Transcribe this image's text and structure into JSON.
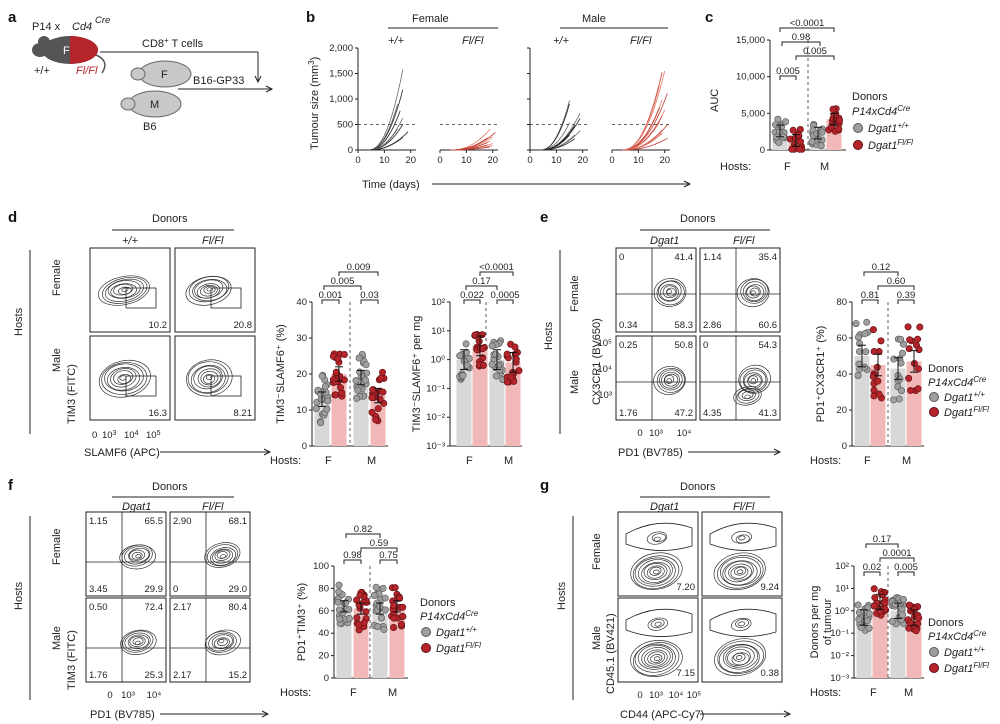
{
  "panels": {
    "a": {
      "letter": "a",
      "p14": "P14 x",
      "cd4": "Cd4",
      "cre": "Cre",
      "wt": "+/+",
      "flfl": "Fl/Fl",
      "mouseF": "F",
      "cd8": "CD8",
      "cd8b": "+",
      "cd8c": " T cells",
      "hostF": "F",
      "hostM": "M",
      "b16": "B16-GP33",
      "b6": "B6",
      "colors": {
        "red": "#b5242a",
        "gray": "#bdbdbd"
      }
    },
    "b": {
      "letter": "b",
      "female": "Female",
      "male": "Male",
      "wt": "+/+",
      "flfl": "Fl/Fl",
      "ylabel_pre": "Tumour size (mm",
      "ylabel_sup": "3",
      "ylabel_post": ")",
      "yticks": [
        "0",
        "500",
        "1,000",
        "1,500",
        "2,000"
      ],
      "xticks": [
        "0",
        "10",
        "20"
      ],
      "xlabel": "Time (days)"
    },
    "c": {
      "letter": "c",
      "ylabel": "AUC",
      "yticks": [
        "0",
        "5,000",
        "10,000",
        "15,000"
      ],
      "p1": "0.005",
      "p2": "0.98",
      "p3": "<0.0001",
      "p4": "0.005",
      "hosts": "Hosts:",
      "F": "F",
      "M": "M",
      "legend_title": "Donors",
      "legend_sub": "P14xCd4",
      "legend_sub_sup": "Cre",
      "wt": "Dgat1",
      "wt_sup": "+/+",
      "fl": "Dgat1",
      "fl_sup": "Fl/Fl"
    },
    "d": {
      "letter": "d",
      "donors": "Donors",
      "wt": "+/+",
      "flfl": "Fl/Fl",
      "hosts": "Hosts",
      "female": "Female",
      "male": "Male",
      "ylabel": "TIM3 (FITC)",
      "xlabel": "SLAMF6 (APC)",
      "xt0": "0",
      "xt1": "10",
      "xt1s": "3",
      "xt2": "10",
      "xt2s": "4",
      "xt3": "10",
      "xt3s": "5",
      "gates": [
        "10.2",
        "20.8",
        "16.3",
        "8.21"
      ],
      "bar1": {
        "ylabel": "TIM3⁻SLAMF6⁺ (%)",
        "yticks": [
          "0",
          "10",
          "20",
          "30",
          "40"
        ],
        "p": [
          "0.001",
          "0.005",
          "0.009",
          "0.03"
        ]
      },
      "bar2": {
        "ylabel": "TIM3⁻SLAMF6⁺ per mg",
        "yticks": [
          "10⁻³",
          "10⁻²",
          "10⁻¹",
          "10⁰",
          "10¹",
          "10²"
        ],
        "p": [
          "0.022",
          "0.17",
          "<0.0001",
          "0.0005"
        ]
      },
      "hostsLbl": "Hosts:",
      "F": "F",
      "M": "M"
    },
    "e": {
      "letter": "e",
      "donors": "Donors",
      "wt": "Dgat1",
      "flfl": "Fl/Fl",
      "hosts": "Hosts",
      "female": "Female",
      "male": "Male",
      "ylabel": "CX3CR1 (BV650)",
      "xlabel": "PD1 (BV785)",
      "q": [
        [
          "0",
          "41.4",
          "0.34",
          "58.3"
        ],
        [
          "1.14",
          "35.4",
          "2.86",
          "60.6"
        ],
        [
          "0.25",
          "50.8",
          "1.76",
          "47.2"
        ],
        [
          "0",
          "54.3",
          "4.35",
          "41.3"
        ]
      ],
      "yt": [
        "10⁵",
        "10⁴",
        "10³"
      ],
      "xt": [
        "0",
        "10³",
        "10⁴"
      ],
      "bar": {
        "ylabel": "PD1⁺CX3CR1⁺ (%)",
        "yticks": [
          "0",
          "20",
          "40",
          "60",
          "80"
        ],
        "p": [
          "0.81",
          "0.12",
          "0.60",
          "0.39"
        ]
      },
      "hostsLbl": "Hosts:",
      "F": "F",
      "M": "M",
      "legend_title": "Donors",
      "legend_sub": "P14xCd4",
      "legend_sub_sup": "Cre",
      "wt_sup": "+/+",
      "fl": "Dgat1",
      "fl_sup": "Fl/Fl"
    },
    "f": {
      "letter": "f",
      "donors": "Donors",
      "wt": "Dgat1",
      "flfl": "Fl/Fl",
      "hosts": "Hosts",
      "female": "Female",
      "male": "Male",
      "ylabel": "TIM3 (FITC)",
      "xlabel": "PD1 (BV785)",
      "q": [
        [
          "1.15",
          "65.5",
          "3.45",
          "29.9"
        ],
        [
          "2.90",
          "68.1",
          "0",
          "29.0"
        ],
        [
          "0.50",
          "72.4",
          "1.76",
          "25.3"
        ],
        [
          "2.17",
          "80.4",
          "2.17",
          "15.2"
        ]
      ],
      "xt": [
        "0",
        "10³",
        "10⁴"
      ],
      "bar": {
        "ylabel": "PD1⁺TIM3⁺ (%)",
        "yticks": [
          "0",
          "20",
          "40",
          "60",
          "80",
          "100"
        ],
        "p": [
          "0.98",
          "0.82",
          "0.59",
          "0.75"
        ]
      },
      "hostsLbl": "Hosts:",
      "F": "F",
      "M": "M",
      "legend_title": "Donors",
      "legend_sub": "P14xCd4",
      "legend_sub_sup": "Cre",
      "wt_sup": "+/+",
      "fl": "Dgat1",
      "fl_sup": "Fl/Fl"
    },
    "g": {
      "letter": "g",
      "donors": "Donors",
      "wt": "Dgat1",
      "flfl": "Fl/Fl",
      "hosts": "Hosts",
      "female": "Female",
      "male": "Male",
      "ylabel": "CD45.1 (BV421)",
      "xlabel": "CD44 (APC-Cy7)",
      "gates": [
        "7.20",
        "9.24",
        "7.15",
        "0.38"
      ],
      "xt": [
        "0",
        "10³",
        "10⁴",
        "10⁵"
      ],
      "bar": {
        "ylabel1": "Donors per mg",
        "ylabel2": "of tumour",
        "yticks": [
          "10⁻³",
          "10⁻²",
          "10⁻¹",
          "10⁰",
          "10¹",
          "10²"
        ],
        "p": [
          "0.02",
          "0.17",
          "0.0001",
          "0.005"
        ]
      },
      "hostsLbl": "Hosts:",
      "F": "F",
      "M": "M",
      "legend_title": "Donors",
      "legend_sub": "P14xCd4",
      "legend_sub_sup": "Cre",
      "wt_sup": "+/+",
      "fl": "Dgat1",
      "fl_sup": "Fl/Fl"
    }
  },
  "chart_data": [
    {
      "panel": "c",
      "type": "bar",
      "categories": [
        "F",
        "M"
      ],
      "series": [
        {
          "name": "Dgat1+/+",
          "values": [
            2600,
            2300
          ]
        },
        {
          "name": "Dgat1Fl/Fl",
          "values": [
            1300,
            4200
          ]
        }
      ],
      "ylabel": "AUC",
      "ylim": [
        0,
        15000
      ]
    },
    {
      "panel": "d1",
      "type": "bar",
      "categories": [
        "F",
        "M"
      ],
      "series": [
        {
          "name": "Dgat1+/+",
          "values": [
            13,
            19
          ]
        },
        {
          "name": "Dgat1Fl/Fl",
          "values": [
            20,
            14
          ]
        }
      ],
      "ylim": [
        0,
        40
      ]
    },
    {
      "panel": "d2",
      "type": "bar",
      "categories": [
        "F",
        "M"
      ],
      "series": [
        {
          "name": "Dgat1+/+",
          "values": [
            1.0,
            1.0
          ]
        },
        {
          "name": "Dgat1Fl/Fl",
          "values": [
            3.0,
            0.8
          ]
        }
      ],
      "ylim": [
        0.001,
        100
      ],
      "log": true
    },
    {
      "panel": "e",
      "type": "bar",
      "categories": [
        "F",
        "M"
      ],
      "series": [
        {
          "name": "Dgat1+/+",
          "values": [
            50,
            43
          ]
        },
        {
          "name": "Dgat1Fl/Fl",
          "values": [
            45,
            47
          ]
        }
      ],
      "ylim": [
        0,
        80
      ]
    },
    {
      "panel": "f",
      "type": "bar",
      "categories": [
        "F",
        "M"
      ],
      "series": [
        {
          "name": "Dgat1+/+",
          "values": [
            64,
            62
          ]
        },
        {
          "name": "Dgat1Fl/Fl",
          "values": [
            62,
            64
          ]
        }
      ],
      "ylim": [
        0,
        100
      ]
    },
    {
      "panel": "g",
      "type": "bar",
      "categories": [
        "F",
        "M"
      ],
      "series": [
        {
          "name": "Dgat1+/+",
          "values": [
            0.5,
            1.0
          ]
        },
        {
          "name": "Dgat1Fl/Fl",
          "values": [
            2.5,
            0.5
          ]
        }
      ],
      "ylim": [
        0.001,
        100
      ],
      "log": true
    }
  ]
}
